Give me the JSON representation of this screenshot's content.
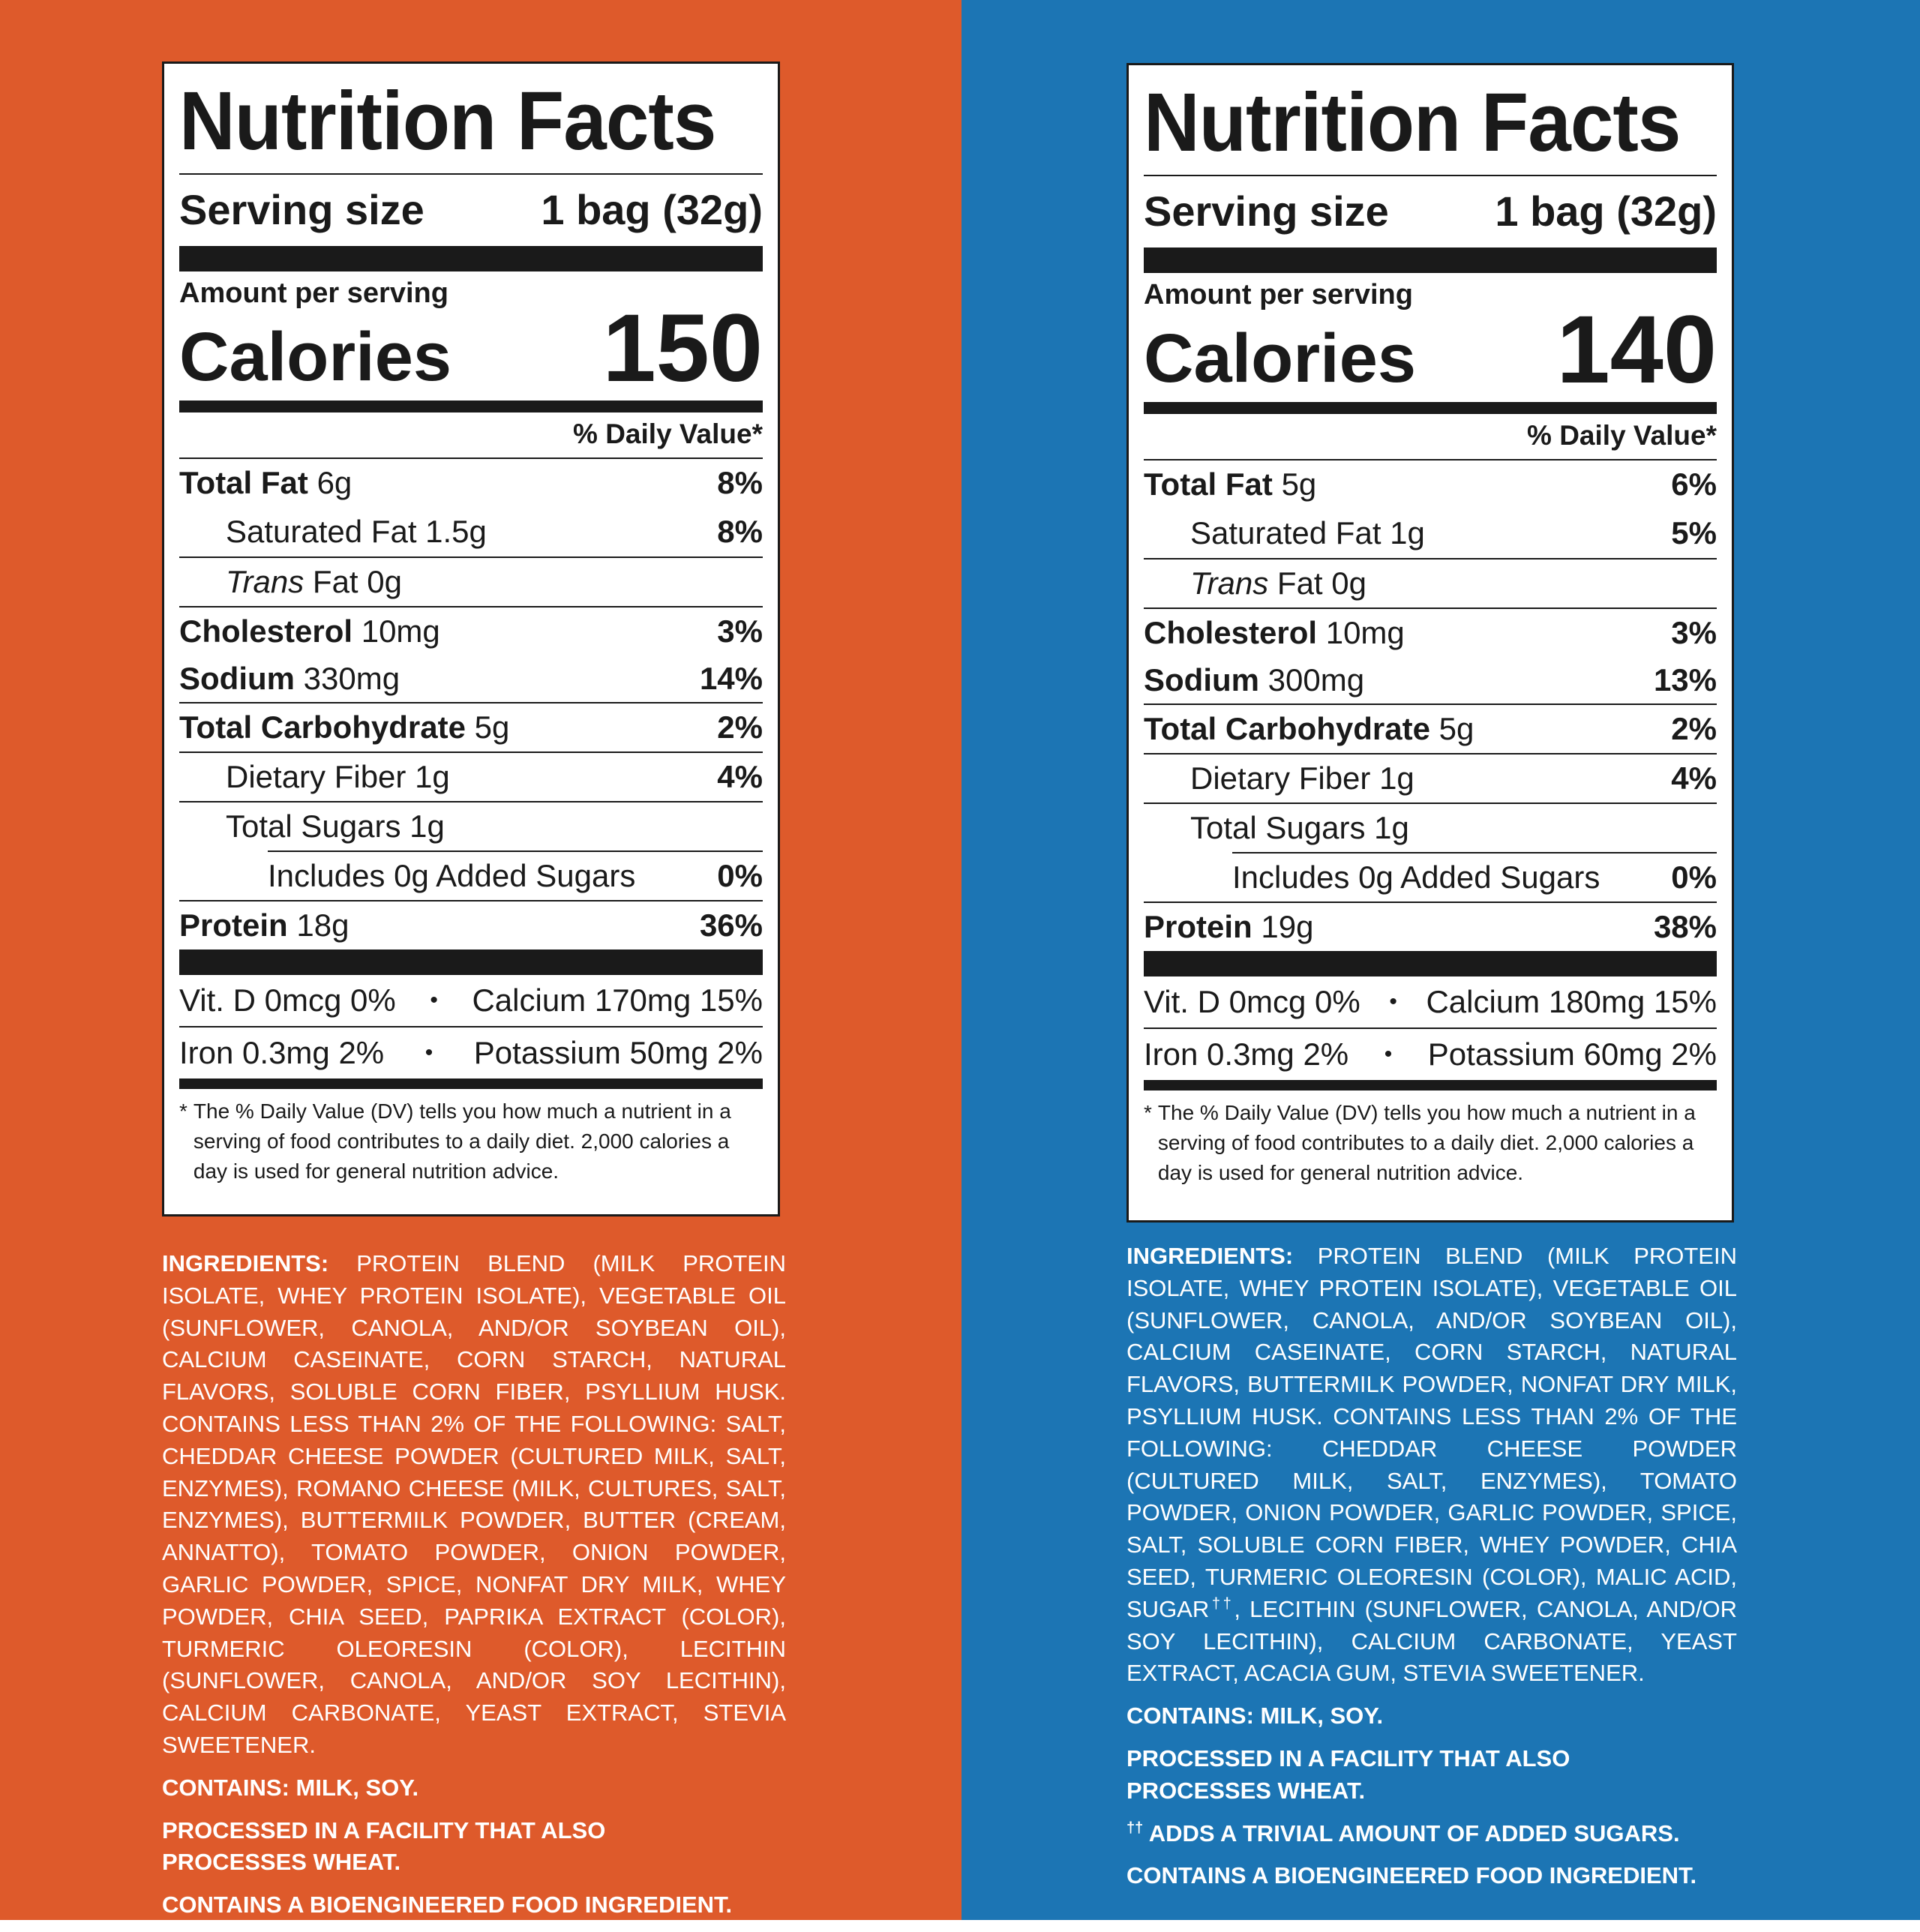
{
  "colors": {
    "left_background": "#DE5A2B",
    "right_background": "#1C75B4",
    "label_ink": "#1A1A1A"
  },
  "panels": [
    {
      "title": "Nutrition Facts",
      "serving_label": "Serving size",
      "serving_value": "1 bag (32g)",
      "amount_per_serving": "Amount per serving",
      "calories_label": "Calories",
      "calories_value": "150",
      "dv_header": "% Daily Value*",
      "nutrients": [
        {
          "name": "Total Fat",
          "amount": "6g",
          "dv": "8%"
        },
        {
          "name": "Saturated Fat",
          "amount": "1.5g",
          "dv": "8%"
        },
        {
          "name": "Trans",
          "amount": "Fat 0g",
          "dv": ""
        },
        {
          "name": "Cholesterol",
          "amount": "10mg",
          "dv": "3%"
        },
        {
          "name": "Sodium",
          "amount": "330mg",
          "dv": "14%"
        },
        {
          "name": "Total Carbohydrate",
          "amount": "5g",
          "dv": "2%"
        },
        {
          "name": "Dietary Fiber",
          "amount": "1g",
          "dv": "4%"
        },
        {
          "name": "Total Sugars",
          "amount": "1g",
          "dv": ""
        },
        {
          "name": "Includes 0g Added Sugars",
          "amount": "",
          "dv": "0%"
        },
        {
          "name": "Protein",
          "amount": "18g",
          "dv": "36%"
        }
      ],
      "vitamins": [
        {
          "left": "Vit. D 0mcg 0%",
          "right": "Calcium 170mg 15%"
        },
        {
          "left": "Iron 0.3mg 2%",
          "right": "Potassium 50mg 2%"
        }
      ],
      "bullet": "•",
      "footnote_star": "*",
      "footnote": "The % Daily Value (DV) tells you how much a nutrient in a serving of food contributes to a daily diet. 2,000 calories a day is used for general nutrition advice.",
      "ingredients_label": "INGREDIENTS:",
      "ingredients": "PROTEIN BLEND (MILK PROTEIN ISOLATE, WHEY PROTEIN ISOLATE), VEGETABLE OIL (SUNFLOWER, CANOLA, AND/OR SOYBEAN OIL), CALCIUM CASEINATE, CORN STARCH, NATURAL FLAVORS, SOLUBLE CORN FIBER, PSYLLIUM HUSK. CONTAINS LESS THAN 2% OF THE FOLLOWING: SALT, CHEDDAR CHEESE POWDER (CULTURED MILK, SALT, ENZYMES), ROMANO CHEESE (MILK, CULTURES, SALT, ENZYMES), BUTTERMILK POWDER, BUTTER (CREAM, ANNATTO), TOMATO POWDER, ONION POWDER, GARLIC POWDER, SPICE, NONFAT DRY MILK, WHEY POWDER, CHIA SEED, PAPRIKA EXTRACT (COLOR), TURMERIC OLEORESIN (COLOR), LECITHIN (SUNFLOWER, CANOLA, AND/OR SOY LECITHIN), CALCIUM CARBONATE, YEAST EXTRACT, STEVIA SWEETENER.",
      "contains": "CONTAINS: MILK, SOY.",
      "facility": "PROCESSED IN A FACILITY THAT ALSO PROCESSES WHEAT.",
      "bioengineered": "CONTAINS A BIOENGINEERED FOOD INGREDIENT."
    },
    {
      "title": "Nutrition Facts",
      "serving_label": "Serving size",
      "serving_value": "1 bag (32g)",
      "amount_per_serving": "Amount per serving",
      "calories_label": "Calories",
      "calories_value": "140",
      "dv_header": "% Daily Value*",
      "nutrients": [
        {
          "name": "Total Fat",
          "amount": "5g",
          "dv": "6%"
        },
        {
          "name": "Saturated Fat",
          "amount": "1g",
          "dv": "5%"
        },
        {
          "name": "Trans",
          "amount": "Fat 0g",
          "dv": ""
        },
        {
          "name": "Cholesterol",
          "amount": "10mg",
          "dv": "3%"
        },
        {
          "name": "Sodium",
          "amount": "300mg",
          "dv": "13%"
        },
        {
          "name": "Total Carbohydrate",
          "amount": "5g",
          "dv": "2%"
        },
        {
          "name": "Dietary Fiber",
          "amount": "1g",
          "dv": "4%"
        },
        {
          "name": "Total Sugars",
          "amount": "1g",
          "dv": ""
        },
        {
          "name": "Includes 0g Added Sugars",
          "amount": "",
          "dv": "0%"
        },
        {
          "name": "Protein",
          "amount": "19g",
          "dv": "38%"
        }
      ],
      "vitamins": [
        {
          "left": "Vit. D 0mcg 0%",
          "right": "Calcium 180mg 15%"
        },
        {
          "left": "Iron 0.3mg 2%",
          "right": "Potassium 60mg 2%"
        }
      ],
      "bullet": "•",
      "footnote_star": "*",
      "footnote": "The % Daily Value (DV) tells you how much a nutrient in a serving of food contributes to a daily diet. 2,000 calories a day is used for general nutrition advice.",
      "ingredients_label": "INGREDIENTS:",
      "ingredients_part1": "PROTEIN BLEND (MILK PROTEIN ISOLATE, WHEY PROTEIN ISOLATE), VEGETABLE OIL (SUNFLOWER, CANOLA, AND/OR SOYBEAN OIL), CALCIUM CASEINATE, CORN STARCH, NATURAL FLAVORS, BUTTERMILK POWDER, NONFAT DRY MILK, PSYLLIUM HUSK. CONTAINS LESS THAN 2% OF THE FOLLOWING: CHEDDAR CHEESE POWDER (CULTURED MILK, SALT, ENZYMES), TOMATO POWDER, ONION POWDER, GARLIC POWDER, SPICE, SALT, SOLUBLE CORN FIBER, WHEY POWDER, CHIA SEED, TURMERIC OLEORESIN (COLOR), MALIC ACID, SUGAR",
      "dagger": "††",
      "ingredients_part2": ", LECITHIN (SUNFLOWER, CANOLA, AND/OR SOY LECITHIN), CALCIUM CARBONATE, YEAST EXTRACT, ACACIA GUM, STEVIA SWEETENER.",
      "contains": "CONTAINS: MILK, SOY.",
      "facility": "PROCESSED IN A FACILITY THAT ALSO PROCESSES WHEAT.",
      "sugar_note": "ADDS A TRIVIAL AMOUNT OF ADDED SUGARS.",
      "bioengineered": "CONTAINS A BIOENGINEERED FOOD INGREDIENT."
    }
  ]
}
